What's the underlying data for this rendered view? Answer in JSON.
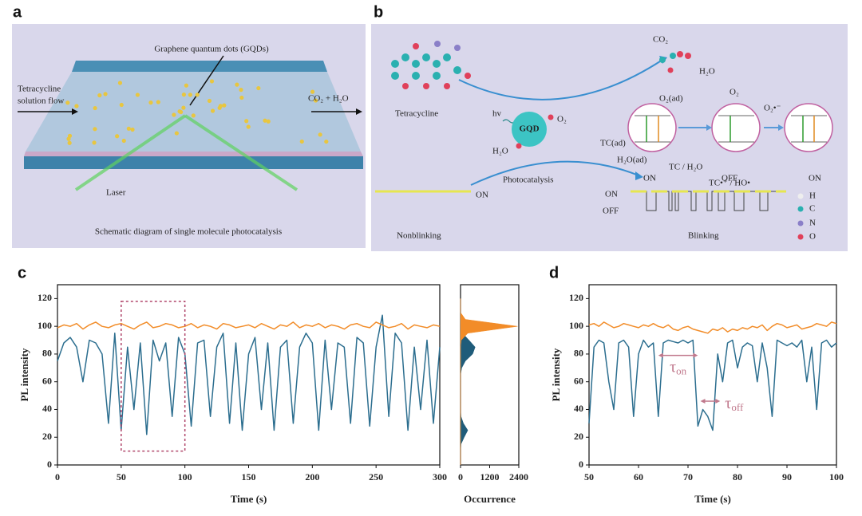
{
  "panel_a": {
    "letter": "a",
    "gqd_label": "Graphene quantum dots (GQDs)",
    "flow_label_1": "Tetracycline",
    "flow_label_2": "solution flow",
    "product_label": "CO₂ + H₂O",
    "laser_label": "Laser",
    "caption": "Schematic diagram of single molecule photocatalysis"
  },
  "panel_b": {
    "letter": "b",
    "tetracycline": "Tetracycline",
    "hv": "hv",
    "gqd": "GQD",
    "o2": "O₂",
    "h2o": "H₂O",
    "co2_top": "CO₂",
    "h2o_top": "H₂O",
    "photocatalysis": "Photocatalysis",
    "o2_right": "O₂",
    "o2_ad": "O₂(ad)",
    "o2_radical": "O₂•⁻",
    "tc_ad": "TC(ad)",
    "h2o_ad": "H₂O(ad)",
    "tc_h2o": "TC / H₂O",
    "tc_radical": "TC•⁺ / HO•",
    "states": [
      "ON",
      "OFF",
      "ON"
    ],
    "nonblinking_state": "ON",
    "trace_on": "ON",
    "trace_off": "OFF",
    "nonblinking": "Nonblinking",
    "blinking": "Blinking",
    "legend": [
      "H",
      "C",
      "N",
      "O"
    ]
  },
  "panel_c_letter": "c",
  "panel_d_letter": "d",
  "chart_data": [
    {
      "type": "line",
      "x_label": "Time (s)",
      "y_label": "PL intensity",
      "xlim": [
        0,
        300
      ],
      "xticks": [
        0,
        50,
        100,
        150,
        200,
        250,
        300
      ],
      "ylim": [
        0,
        130
      ],
      "yticks": [
        0,
        20,
        40,
        60,
        80,
        100,
        120
      ],
      "x": [
        0,
        5,
        10,
        15,
        20,
        25,
        30,
        35,
        40,
        45,
        50,
        55,
        60,
        65,
        70,
        75,
        80,
        85,
        90,
        95,
        100,
        105,
        110,
        115,
        120,
        125,
        130,
        135,
        140,
        145,
        150,
        155,
        160,
        165,
        170,
        175,
        180,
        185,
        190,
        195,
        200,
        205,
        210,
        215,
        220,
        225,
        230,
        235,
        240,
        245,
        250,
        255,
        260,
        265,
        270,
        275,
        280,
        285,
        290,
        295,
        300
      ],
      "series": [
        {
          "color": "#2c6e8f",
          "values": [
            75,
            88,
            92,
            85,
            60,
            90,
            88,
            80,
            30,
            95,
            25,
            85,
            40,
            88,
            22,
            90,
            75,
            88,
            35,
            92,
            80,
            28,
            88,
            90,
            35,
            85,
            95,
            30,
            88,
            25,
            80,
            92,
            40,
            88,
            25,
            85,
            90,
            30,
            85,
            95,
            88,
            25,
            90,
            40,
            88,
            85,
            30,
            92,
            88,
            28,
            85,
            108,
            35,
            95,
            88,
            25,
            85,
            40,
            90,
            30,
            85
          ]
        },
        {
          "color": "#f28c28",
          "values": [
            99,
            101,
            100,
            102,
            98,
            101,
            103,
            100,
            99,
            101,
            102,
            100,
            98,
            101,
            103,
            99,
            100,
            102,
            101,
            99,
            100,
            102,
            99,
            101,
            100,
            98,
            102,
            101,
            99,
            100,
            101,
            99,
            102,
            100,
            98,
            101,
            100,
            103,
            99,
            101,
            100,
            102,
            99,
            101,
            100,
            98,
            101,
            102,
            100,
            99,
            103,
            101,
            99,
            100,
            102,
            98,
            101,
            100,
            99,
            101,
            100
          ]
        }
      ],
      "highlight": {
        "x": [
          50,
          100
        ],
        "y": [
          10,
          118
        ],
        "color": "#b0456a"
      }
    },
    {
      "type": "area",
      "orientation": "horizontal",
      "x_label": "Occurrence",
      "xlim": [
        0,
        2400
      ],
      "xticks": [
        0,
        1200,
        2400
      ],
      "ylim": [
        0,
        130
      ],
      "y": [
        0,
        5,
        10,
        15,
        20,
        25,
        30,
        35,
        40,
        45,
        50,
        55,
        60,
        65,
        70,
        75,
        80,
        85,
        90,
        95,
        100,
        105,
        110,
        115,
        120
      ],
      "series": [
        {
          "color": "#1f5c7a",
          "values": [
            0,
            0,
            0,
            20,
            150,
            300,
            120,
            20,
            0,
            0,
            0,
            0,
            0,
            0,
            50,
            200,
            500,
            600,
            350,
            80,
            10,
            0,
            0,
            0,
            0
          ]
        },
        {
          "color": "#f28c28",
          "values": [
            0,
            0,
            0,
            0,
            0,
            0,
            0,
            0,
            0,
            0,
            0,
            0,
            0,
            0,
            0,
            0,
            0,
            0,
            30,
            300,
            2350,
            200,
            0,
            0,
            0
          ]
        }
      ]
    },
    {
      "type": "line",
      "x_label": "Time (s)",
      "y_label": "PL intensity",
      "xlim": [
        50,
        100
      ],
      "xticks": [
        50,
        60,
        70,
        80,
        90,
        100
      ],
      "ylim": [
        0,
        130
      ],
      "yticks": [
        0,
        20,
        40,
        60,
        80,
        100,
        120
      ],
      "x": [
        50,
        51,
        52,
        53,
        54,
        55,
        56,
        57,
        58,
        59,
        60,
        61,
        62,
        63,
        64,
        65,
        66,
        67,
        68,
        69,
        70,
        71,
        72,
        73,
        74,
        75,
        76,
        77,
        78,
        79,
        80,
        81,
        82,
        83,
        84,
        85,
        86,
        87,
        88,
        89,
        90,
        91,
        92,
        93,
        94,
        95,
        96,
        97,
        98,
        99,
        100
      ],
      "series": [
        {
          "color": "#2c6e8f",
          "values": [
            30,
            85,
            90,
            88,
            60,
            40,
            88,
            90,
            85,
            35,
            80,
            90,
            85,
            88,
            35,
            88,
            90,
            89,
            88,
            90,
            88,
            90,
            28,
            40,
            35,
            25,
            80,
            60,
            88,
            90,
            70,
            85,
            88,
            86,
            60,
            88,
            70,
            35,
            90,
            88,
            86,
            88,
            85,
            90,
            60,
            85,
            40,
            88,
            90,
            85,
            88
          ]
        },
        {
          "color": "#f28c28",
          "values": [
            101,
            102,
            100,
            103,
            101,
            99,
            100,
            102,
            101,
            100,
            99,
            101,
            100,
            102,
            100,
            99,
            101,
            98,
            97,
            99,
            100,
            98,
            97,
            96,
            95,
            98,
            97,
            99,
            96,
            98,
            97,
            99,
            98,
            100,
            99,
            101,
            97,
            100,
            102,
            101,
            99,
            100,
            101,
            98,
            99,
            100,
            102,
            101,
            100,
            103,
            102
          ]
        }
      ],
      "annotations": [
        {
          "symbol": "τ",
          "sub": "on",
          "x": [
            64,
            72
          ],
          "y": 79,
          "color": "#c0788c"
        },
        {
          "symbol": "τ",
          "sub": "off",
          "x": [
            72.5,
            76.5
          ],
          "y": 46,
          "color": "#c0788c"
        }
      ]
    }
  ]
}
